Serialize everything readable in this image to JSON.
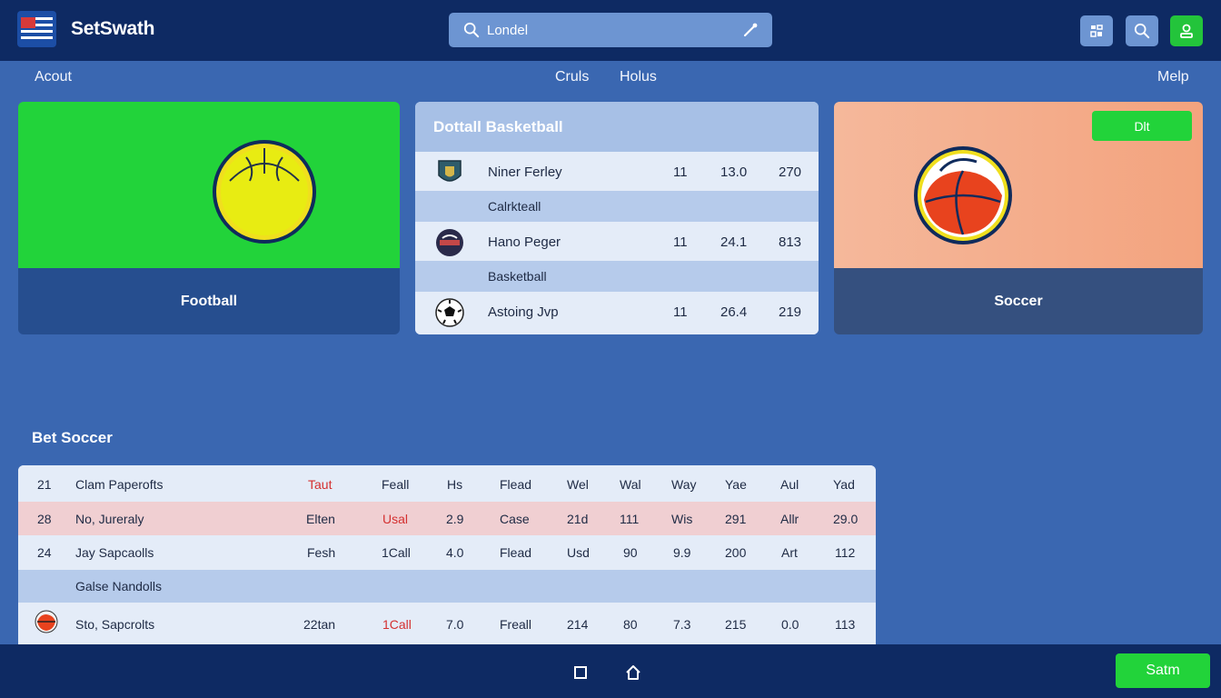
{
  "app": {
    "name": "SetSwath"
  },
  "search": {
    "value": "Londel"
  },
  "nav": {
    "left": "Acout",
    "center1": "Cruls",
    "center2": "Holus",
    "right": "Melp"
  },
  "cards": {
    "football": {
      "label": "Football"
    },
    "soccer": {
      "label": "Soccer",
      "edit_label": "Dlt"
    }
  },
  "list": {
    "title": "Dottall Basketball",
    "rows": [
      {
        "name": "Niner Ferley",
        "v1": "11",
        "v2": "13.0",
        "v3": "270"
      },
      {
        "section": "Calrkteall"
      },
      {
        "name": "Hano Peger",
        "v1": "11",
        "v2": "24.1",
        "v3": "813"
      },
      {
        "section": "Basketball"
      },
      {
        "name": "Astoing Jvp",
        "v1": "11",
        "v2": "26.4",
        "v3": "219"
      }
    ]
  },
  "table": {
    "title": "Bet Soccer",
    "rows": [
      {
        "num": "21",
        "name": "Clam Paperofts",
        "cells": [
          "Taut",
          "Feall",
          "Hs",
          "Flead",
          "Wel",
          "Wal",
          "Way",
          "Yae",
          "Aul",
          "Yad"
        ]
      },
      {
        "num": "28",
        "name": "No, Jureraly",
        "cells": [
          "Elten",
          "Usal",
          "2.9",
          "Case",
          "21d",
          "111",
          "Wis",
          "291",
          "Allr",
          "29.0"
        ]
      },
      {
        "num": "24",
        "name": "Jay Sapcaolls",
        "cells": [
          "Fesh",
          "1Call",
          "4.0",
          "Flead",
          "Usd",
          "90",
          "9.9",
          "200",
          "Art",
          "112"
        ]
      },
      {
        "section": "Galse Nandolls"
      },
      {
        "num": "",
        "name": "Sto, Sapcrolts",
        "cells": [
          "22tan",
          "1Call",
          "7.0",
          "Freall",
          "214",
          "80",
          "7.3",
          "215",
          "0.0",
          "113"
        ]
      }
    ]
  },
  "bottom": {
    "submit_label": "Satm"
  },
  "colors": {
    "header": "#0e2a63",
    "background": "#3a67b1",
    "accent_green": "#22d33a",
    "highlight_red": "#d43030"
  }
}
